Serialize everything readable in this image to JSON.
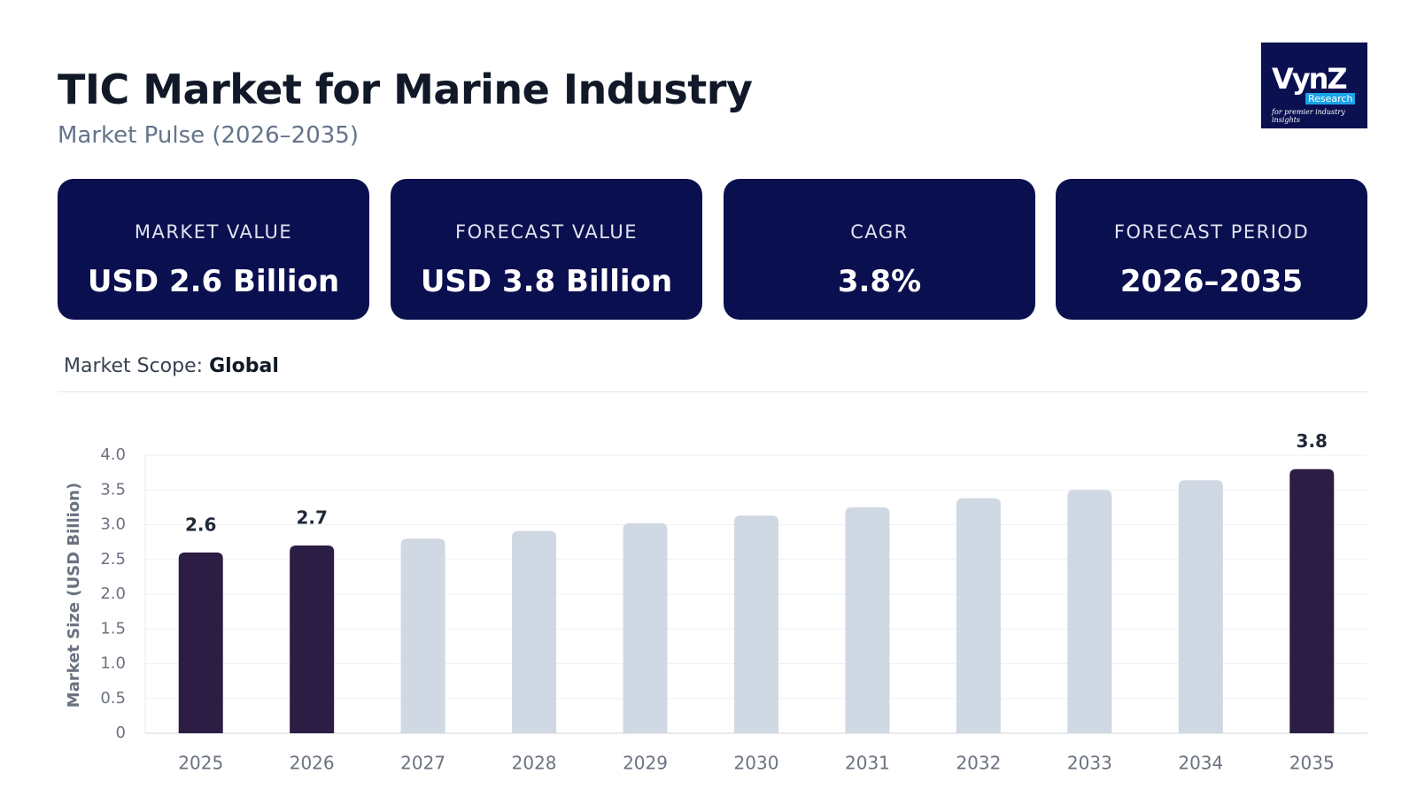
{
  "header": {
    "title": "TIC Market for Marine Industry",
    "subtitle": "Market Pulse (2026–2035)"
  },
  "logo": {
    "name": "VynZ",
    "sub": "Research",
    "tagline": "for premier industry insights"
  },
  "kpis": [
    {
      "label": "MARKET VALUE",
      "value": "USD 2.6 Billion"
    },
    {
      "label": "FORECAST VALUE",
      "value": "USD 3.8 Billion"
    },
    {
      "label": "CAGR",
      "value": "3.8%"
    },
    {
      "label": "FORECAST PERIOD",
      "value": "2026–2035"
    }
  ],
  "scope": {
    "label": "Market Scope:",
    "value": "Global"
  },
  "chart_data": {
    "type": "bar",
    "y_label": "Market Size (USD Billion)",
    "categories": [
      "2025",
      "2026",
      "2027",
      "2028",
      "2029",
      "2030",
      "2031",
      "2032",
      "2033",
      "2034",
      "2035"
    ],
    "values": [
      2.6,
      2.7,
      2.8,
      2.91,
      3.02,
      3.13,
      3.25,
      3.38,
      3.5,
      3.64,
      3.8
    ],
    "colors": [
      "#2b1d44",
      "#2b1d44",
      "#cfd8e3",
      "#cfd8e3",
      "#cfd8e3",
      "#cfd8e3",
      "#cfd8e3",
      "#cfd8e3",
      "#cfd8e3",
      "#cfd8e3",
      "#2b1d44"
    ],
    "labeled": [
      true,
      true,
      false,
      false,
      false,
      false,
      false,
      false,
      false,
      false,
      true
    ],
    "ylim": [
      0,
      4
    ],
    "yticks": [
      0,
      0.5,
      {
        "value": 1,
        "label": "1.0"
      },
      1.5,
      {
        "value": 2,
        "label": "2.0"
      },
      2.5,
      {
        "value": 3,
        "label": "3.0"
      },
      3.5,
      {
        "value": 4,
        "label": "4.0"
      }
    ],
    "grid": true
  }
}
